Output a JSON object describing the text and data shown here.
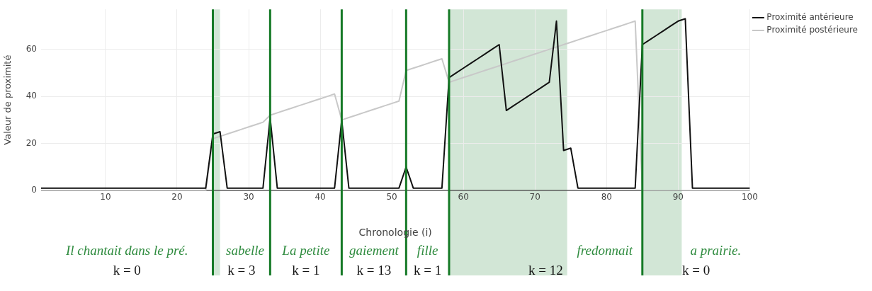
{
  "chart_data": {
    "type": "line",
    "xlabel": "Chronologie (i)",
    "ylabel": "Valeur de proximité",
    "x": [
      1,
      2,
      3,
      4,
      5,
      6,
      7,
      8,
      9,
      10,
      11,
      12,
      13,
      14,
      15,
      16,
      17,
      18,
      19,
      20,
      21,
      22,
      23,
      24,
      25,
      26,
      27,
      28,
      29,
      30,
      31,
      32,
      33,
      34,
      35,
      36,
      37,
      38,
      39,
      40,
      41,
      42,
      43,
      44,
      45,
      46,
      47,
      48,
      49,
      50,
      51,
      52,
      53,
      54,
      55,
      56,
      57,
      58,
      59,
      60,
      61,
      62,
      63,
      64,
      65,
      66,
      67,
      68,
      69,
      70,
      71,
      72,
      73,
      74,
      75,
      76,
      77,
      78,
      79,
      80,
      81,
      82,
      83,
      84,
      85,
      86,
      87,
      88,
      89,
      90,
      91,
      92,
      93,
      94,
      95,
      96,
      97,
      98,
      99,
      100
    ],
    "series": [
      {
        "name": "Proximité antérieure",
        "color": "#111111",
        "values": [
          1,
          1,
          1,
          1,
          1,
          1,
          1,
          1,
          1,
          1,
          1,
          1,
          1,
          1,
          1,
          1,
          1,
          1,
          1,
          1,
          1,
          1,
          1,
          1,
          24,
          25,
          1,
          1,
          1,
          1,
          1,
          1,
          31,
          1,
          1,
          1,
          1,
          1,
          1,
          1,
          1,
          1,
          30,
          1,
          1,
          1,
          1,
          1,
          1,
          1,
          1,
          10,
          1,
          1,
          1,
          1,
          1,
          48,
          50,
          52,
          54,
          56,
          58,
          60,
          62,
          34,
          36,
          38,
          40,
          42,
          44,
          46,
          72,
          17,
          18,
          1,
          1,
          1,
          1,
          1,
          1,
          1,
          1,
          1,
          62,
          64,
          66,
          68,
          70,
          72,
          73,
          1,
          1,
          1,
          1,
          1,
          1,
          1,
          1,
          1
        ]
      },
      {
        "name": "Proximité postérieure",
        "color": "#c8c8c8",
        "values": [
          0,
          0,
          0,
          0,
          0,
          0,
          0,
          0,
          0,
          0,
          0,
          0,
          0,
          0,
          0,
          0,
          0,
          0,
          0,
          0,
          0,
          0,
          0,
          0,
          22,
          23,
          24,
          25,
          26,
          27,
          28,
          29,
          32,
          33,
          34,
          35,
          36,
          37,
          38,
          39,
          40,
          41,
          30,
          31,
          32,
          33,
          34,
          35,
          36,
          37,
          38,
          51,
          52,
          53,
          54,
          55,
          56,
          46,
          47,
          48,
          49,
          50,
          51,
          52,
          53,
          54,
          55,
          56,
          57,
          58,
          59,
          60,
          61,
          62,
          63,
          64,
          65,
          66,
          67,
          68,
          69,
          70,
          71,
          72,
          0,
          0,
          0,
          0,
          0,
          0,
          0,
          0,
          0,
          0,
          0,
          0,
          0,
          0,
          0,
          0
        ]
      }
    ],
    "xlim": [
      1,
      100
    ],
    "xticks": [
      10,
      20,
      30,
      40,
      50,
      60,
      70,
      80,
      90,
      100
    ],
    "ylim": [
      0,
      77
    ],
    "yticks": [
      0,
      20,
      40,
      60
    ],
    "grid": true,
    "legend": "top right",
    "marker": "none",
    "line_style": "solid",
    "ref_lines": [
      {
        "axis": "x",
        "value": 25,
        "color": "#167a27"
      },
      {
        "axis": "x",
        "value": 33,
        "color": "#167a27"
      },
      {
        "axis": "x",
        "value": 43,
        "color": "#167a27"
      },
      {
        "axis": "x",
        "value": 52,
        "color": "#167a27"
      },
      {
        "axis": "x",
        "value": 58,
        "color": "#167a27"
      },
      {
        "axis": "x",
        "value": 85,
        "color": "#167a27"
      }
    ],
    "bands": [
      {
        "axis": "x",
        "from": 25,
        "to": 26,
        "color": "#d2e6d6"
      },
      {
        "axis": "x",
        "from": 58,
        "to": 74.5,
        "color": "#d2e6d6"
      },
      {
        "axis": "x",
        "from": 85,
        "to": 90.5,
        "color": "#d2e6d6"
      }
    ],
    "annotations": [
      "Il chantait dans le pré.",
      "sabelle",
      "La petite",
      "gaiement",
      "fille",
      "fredonnait",
      "a prairie.",
      "k = 0",
      "k = 3",
      "k = 1",
      "k = 13",
      "k = 1",
      "k = 12",
      "k = 0"
    ]
  }
}
